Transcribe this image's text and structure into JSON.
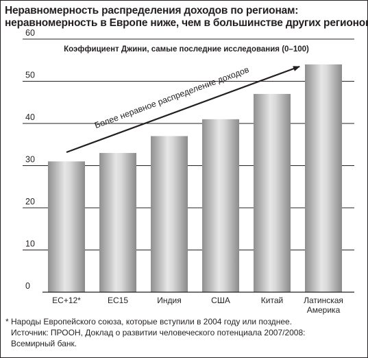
{
  "title_line1": "Неравномерность распределения доходов по регионам:",
  "title_line2": "неравномерность в Европе ниже, чем в большинстве других регионов",
  "chart_data": {
    "type": "bar",
    "subtitle": "Коэффициент Джини, самые последние исследования (0–100)",
    "categories": [
      "ЕС+12*",
      "ЕС15",
      "Индия",
      "США",
      "Китай",
      "Латинская Америка"
    ],
    "category_lines": [
      [
        "ЕС+12*"
      ],
      [
        "ЕС15"
      ],
      [
        "Индия"
      ],
      [
        "США"
      ],
      [
        "Китай"
      ],
      [
        "Латинская",
        "Америка"
      ]
    ],
    "values": [
      31,
      33,
      37,
      41,
      47,
      54
    ],
    "ylim": [
      0,
      60
    ],
    "yticks": [
      0,
      10,
      20,
      30,
      40,
      50,
      60
    ],
    "grid": true,
    "annotation": "Более неравное распределение доходов",
    "bar_color": "#b3b3b3",
    "text_color": "#231f20"
  },
  "footnotes": [
    "* Народы Европейского союза, которые вступили в 2004 году или позднее.",
    "Источник: ПРООН, Доклад о развитии человеческого потенциала 2007/2008:",
    "Всемирный банк."
  ]
}
